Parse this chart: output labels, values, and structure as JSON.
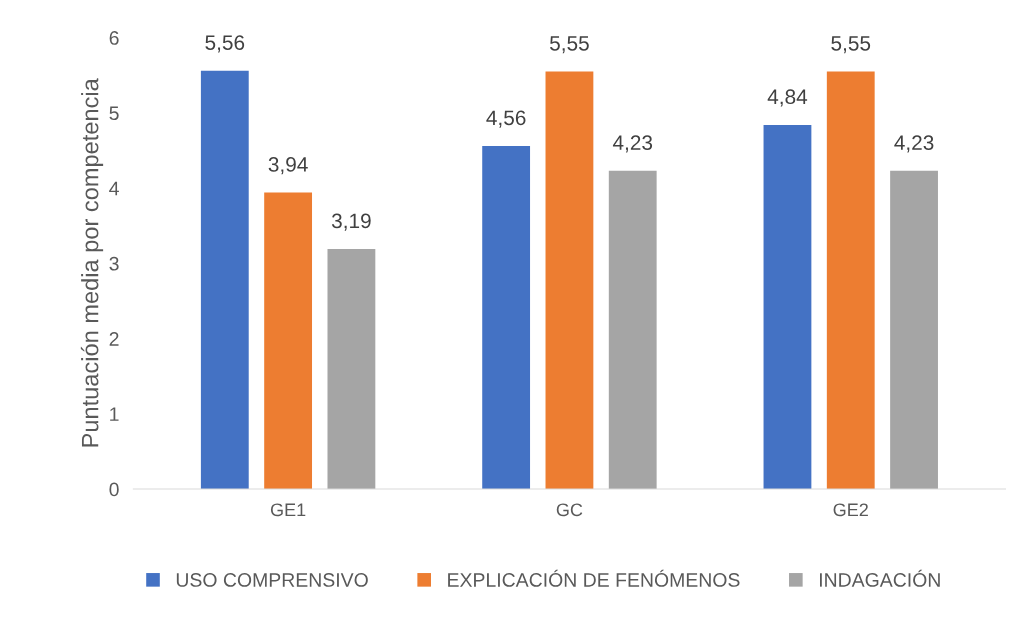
{
  "chart_data": {
    "type": "bar",
    "ylabel": "Puntuación media por competencia",
    "categories": [
      "GE1",
      "GC",
      "GE2"
    ],
    "series": [
      {
        "name": "USO COMPRENSIVO",
        "color": "#4472c4",
        "values": [
          5.56,
          4.56,
          4.84
        ],
        "value_labels": [
          "5,56",
          "4,56",
          "4,84"
        ]
      },
      {
        "name": "EXPLICACIÓN DE FENÓMENOS",
        "color": "#ed7d31",
        "values": [
          3.94,
          5.55,
          5.55
        ],
        "value_labels": [
          "3,94",
          "5,55",
          "5,55"
        ]
      },
      {
        "name": "INDAGACIÓN",
        "color": "#a5a5a5",
        "values": [
          3.19,
          4.23,
          4.23
        ],
        "value_labels": [
          "3,19",
          "4,23",
          "4,23"
        ]
      }
    ],
    "ylim": [
      0,
      6
    ],
    "yticks": [
      0,
      1,
      2,
      3,
      4,
      5,
      6
    ],
    "grid": false,
    "legend": "bottom"
  }
}
